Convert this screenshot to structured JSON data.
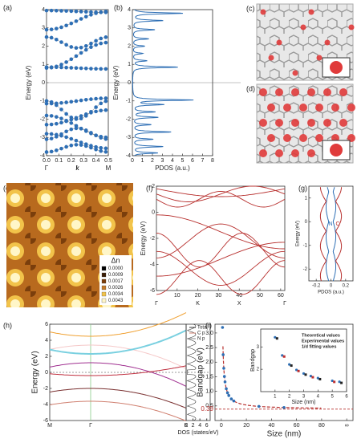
{
  "panels": {
    "a": {
      "label": "(a)",
      "ylabel": "Energy (eV)",
      "xlabel": "k",
      "xpoints": [
        "Γ",
        "M"
      ],
      "xlim": [
        0,
        0.5
      ],
      "ylim": [
        -4,
        4
      ],
      "xticks": [
        {
          "value": 0,
          "label": "0.0"
        },
        0.1,
        0.2,
        0.3,
        0.4,
        0.5
      ],
      "yticks": [
        -4,
        -3,
        -2,
        -1,
        0,
        1,
        2,
        3,
        4
      ]
    },
    "b": {
      "label": "(b)",
      "ylabel": "Energy (eV)",
      "xlabel": "PDOS (a.u.)",
      "xlim": [
        0,
        8
      ],
      "ylim": [
        -4,
        4
      ],
      "xticks": [
        0,
        1,
        2,
        3,
        4,
        5,
        6,
        7,
        8
      ],
      "yticks": [
        -4,
        -3,
        -2,
        -1,
        0,
        1,
        2,
        3,
        4
      ]
    },
    "c": {
      "label": "(c)"
    },
    "d": {
      "label": "(d)"
    },
    "e": {
      "label": "(e)",
      "legend_title": "Δn",
      "legend": [
        "0.0000",
        "0.0009",
        "0.0017",
        "0.0026",
        "0.0034",
        "0.0043"
      ]
    },
    "f": {
      "label": "(f)",
      "ylabel": "Energy (eV)",
      "xpoints": [
        "Γ",
        "K",
        "X",
        "Γ"
      ],
      "xlim": [
        0,
        62
      ],
      "ylim": [
        -6,
        2
      ],
      "xticks": [
        10,
        20,
        30,
        40,
        50,
        60
      ],
      "yticks": [
        -6,
        -4,
        -2,
        0,
        2
      ]
    },
    "g": {
      "label": "(g)",
      "ylabel": "Energy (eV)",
      "xlabel": "PDOS (a.u.)",
      "curves": [
        "N",
        "C"
      ],
      "xlim": [
        -0.3,
        0.3
      ],
      "ylim": [
        -2.5,
        1.5
      ],
      "xticks": [
        -0.2,
        0,
        0.2
      ],
      "yticks": [
        -2,
        -1,
        0,
        1
      ]
    },
    "h": {
      "label": "(h)",
      "ylabel": "Energy (eV)",
      "xpoints": [
        "M",
        "Γ",
        "K"
      ],
      "ylim": [
        -6,
        6
      ],
      "yticks": [
        -6,
        -4,
        -2,
        0,
        2,
        4,
        6
      ],
      "dos_xlabel": "DOS (states/eV)",
      "dos_xlim": [
        0,
        7
      ],
      "dos_xticks": [
        0,
        2,
        4,
        6
      ],
      "legend": [
        "Total",
        "C p",
        "N p"
      ]
    },
    "i": {
      "label": "(i)",
      "ylabel": "Bandgap (eV)",
      "xlabel": "Size (nm)",
      "xlim": [
        -5,
        105
      ],
      "ylim": [
        0,
        3.3
      ],
      "xticks": [
        0,
        20,
        40,
        60,
        80,
        {
          "value": 100,
          "label": "∞"
        }
      ],
      "yticks": [
        0.5,
        {
          "value": 1,
          "label": "1.0"
        },
        1.5,
        {
          "value": 2,
          "label": "2.0"
        },
        2.5,
        {
          "value": 3,
          "label": "3.0"
        }
      ],
      "limit": 0.39,
      "inset": {
        "ylabel": "Bandgap",
        "xlabel": "Size (nm)",
        "xlim": [
          0,
          6
        ],
        "ylim": [
          1,
          3.8
        ],
        "xticks": [
          1,
          2,
          3,
          4,
          5,
          6
        ],
        "yticks": [
          2,
          3
        ],
        "legend": [
          "Theoretical values",
          "Experimental values",
          "1/d fitting values"
        ]
      }
    }
  }
}
